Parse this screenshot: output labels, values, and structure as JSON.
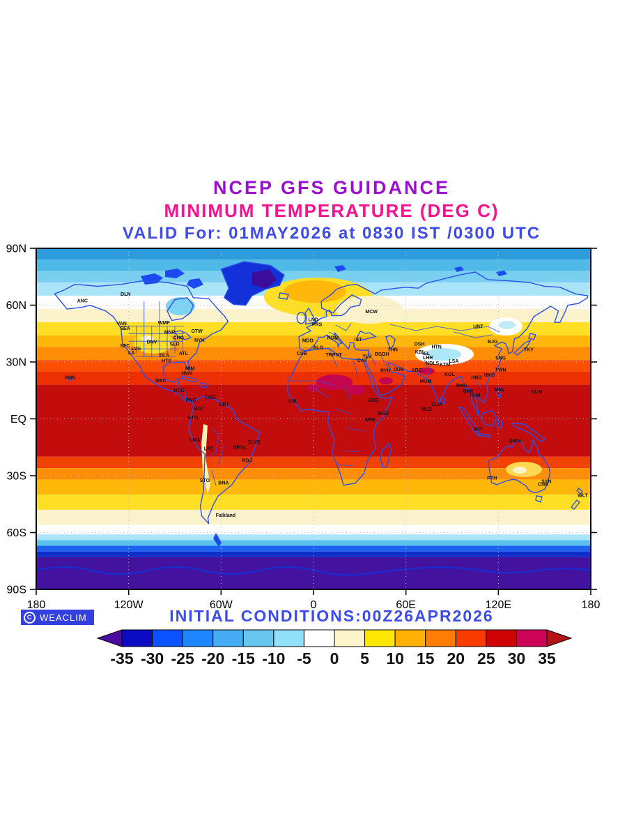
{
  "header": {
    "line1": "NCEP GFS GUIDANCE",
    "line2": "MINIMUM TEMPERATURE (DEG C)",
    "line3": "VALID For: 01MAY2026 at 0830 IST /0300 UTC"
  },
  "footer": {
    "initial_conditions": "INITIAL CONDITIONS:00Z26APR2026",
    "copyright_symbol": "C",
    "brand": "WEACLIM"
  },
  "colors": {
    "title1": "#9A10CE",
    "title2": "#FA1190",
    "title3": "#3D4BE8",
    "outline": "#2B50E8",
    "badge_bg": "#3340DF"
  },
  "chart_data": {
    "type": "heatmap",
    "title": "NCEP GFS GUIDANCE",
    "subtitle": "MINIMUM TEMPERATURE (DEG C)",
    "valid": "VALID For: 01MAY2026 at 0830 IST /0300 UTC",
    "initial": "INITIAL CONDITIONS:00Z26APR2026",
    "units": "DEG C",
    "projection": "equirectangular world map, lon -180..180, lat -90..90",
    "lat_ticks": [
      {
        "label": "90N",
        "lat": 90
      },
      {
        "label": "60N",
        "lat": 60
      },
      {
        "label": "30N",
        "lat": 30
      },
      {
        "label": "EQ",
        "lat": 0
      },
      {
        "label": "30S",
        "lat": -30
      },
      {
        "label": "60S",
        "lat": -60
      },
      {
        "label": "90S",
        "lat": -90
      }
    ],
    "lon_ticks": [
      {
        "label": "180",
        "lon": -180
      },
      {
        "label": "120W",
        "lon": -120
      },
      {
        "label": "60W",
        "lon": -60
      },
      {
        "label": "0",
        "lon": 0
      },
      {
        "label": "60E",
        "lon": 60
      },
      {
        "label": "120E",
        "lon": 120
      },
      {
        "label": "180",
        "lon": 180
      }
    ],
    "zonal_bands": [
      {
        "from": 90,
        "to": 84,
        "color": "#2D9BDC"
      },
      {
        "from": 84,
        "to": 78,
        "color": "#4FB9E8"
      },
      {
        "from": 78,
        "to": 72,
        "color": "#79CFF0"
      },
      {
        "from": 72,
        "to": 65,
        "color": "#A9E4F8"
      },
      {
        "from": 65,
        "to": 58,
        "color": "#FFFFFF"
      },
      {
        "from": 58,
        "to": 51,
        "color": "#FBF2CC"
      },
      {
        "from": 51,
        "to": 44,
        "color": "#FFDE26"
      },
      {
        "from": 44,
        "to": 38,
        "color": "#FFB70A"
      },
      {
        "from": 38,
        "to": 31,
        "color": "#FF8D06"
      },
      {
        "from": 31,
        "to": 25,
        "color": "#FB4F04"
      },
      {
        "from": 25,
        "to": 18,
        "color": "#EC3002"
      },
      {
        "from": 18,
        "to": -20,
        "color": "#C30C0C"
      },
      {
        "from": -20,
        "to": -26,
        "color": "#F04202"
      },
      {
        "from": -26,
        "to": -32,
        "color": "#FF8D06"
      },
      {
        "from": -32,
        "to": -40,
        "color": "#FFB70A"
      },
      {
        "from": -40,
        "to": -48,
        "color": "#FFDE26"
      },
      {
        "from": -48,
        "to": -56,
        "color": "#FBF2CC"
      },
      {
        "from": -56,
        "to": -61,
        "color": "#FFFFFF"
      },
      {
        "from": -61,
        "to": -64,
        "color": "#A9E4F8"
      },
      {
        "from": -64,
        "to": -67,
        "color": "#59C2EC"
      },
      {
        "from": -67,
        "to": -70,
        "color": "#1E62F0"
      },
      {
        "from": -70,
        "to": -73,
        "color": "#0B2FC8"
      },
      {
        "from": -73,
        "to": -90,
        "color": "#43129E"
      }
    ],
    "colorbar": {
      "levels": [
        -35,
        -30,
        -25,
        -20,
        -15,
        -10,
        -5,
        0,
        5,
        10,
        15,
        20,
        25,
        30,
        35
      ],
      "colors": [
        "#0B0BC4",
        "#0C52FF",
        "#1E86FF",
        "#45ABF2",
        "#68C6EE",
        "#8FE0F8",
        "#FFFFFF",
        "#FCF4CB",
        "#FFE705",
        "#FFB005",
        "#FF7D05",
        "#FB3C02",
        "#CE0404",
        "#CC0458"
      ],
      "arrow_left_color": "#4A0C9E",
      "arrow_right_color": "#B31217"
    },
    "city_labels": [
      {
        "name": "HON",
        "lon": -158,
        "lat": 21
      },
      {
        "name": "ANC",
        "lon": -150,
        "lat": 61.5
      },
      {
        "name": "DLN",
        "lon": -122,
        "lat": 65
      },
      {
        "name": "VAN",
        "lon": -124.5,
        "lat": 49.5
      },
      {
        "name": "SEA",
        "lon": -122.3,
        "lat": 47
      },
      {
        "name": "WMP",
        "lon": -97.1,
        "lat": 49.9
      },
      {
        "name": "MNP",
        "lon": -93.3,
        "lat": 45
      },
      {
        "name": "OTW",
        "lon": -75.7,
        "lat": 45.4
      },
      {
        "name": "NYK",
        "lon": -74,
        "lat": 40.7
      },
      {
        "name": "CHG",
        "lon": -87.6,
        "lat": 41.9
      },
      {
        "name": "SLD",
        "lon": -90.2,
        "lat": 38.6
      },
      {
        "name": "DNV",
        "lon": -104.9,
        "lat": 39.7
      },
      {
        "name": "SFC",
        "lon": -122.4,
        "lat": 37.8
      },
      {
        "name": "LVG",
        "lon": -115.1,
        "lat": 36.2
      },
      {
        "name": "LA",
        "lon": -118.2,
        "lat": 34.1
      },
      {
        "name": "DLS",
        "lon": -96.8,
        "lat": 32.8
      },
      {
        "name": "ATL",
        "lon": -84.4,
        "lat": 33.7
      },
      {
        "name": "HTS",
        "lon": -95.4,
        "lat": 29.8
      },
      {
        "name": "MIM",
        "lon": -80.2,
        "lat": 25.8
      },
      {
        "name": "HVH",
        "lon": -82.4,
        "lat": 23.1
      },
      {
        "name": "MXC",
        "lon": -99.1,
        "lat": 19.4
      },
      {
        "name": "HCO",
        "lon": -87.2,
        "lat": 14.1
      },
      {
        "name": "PNC",
        "lon": -79.5,
        "lat": 9
      },
      {
        "name": "CRG",
        "lon": -66.9,
        "lat": 10.5
      },
      {
        "name": "BGT",
        "lon": -74.1,
        "lat": 4.6
      },
      {
        "name": "GRT",
        "lon": -58.2,
        "lat": 6.8
      },
      {
        "name": "GTO",
        "lon": -78.5,
        "lat": -0.2
      },
      {
        "name": "LMA",
        "lon": -77,
        "lat": -12
      },
      {
        "name": "LPZ",
        "lon": -68.1,
        "lat": -16.5
      },
      {
        "name": "BRSL",
        "lon": -47.9,
        "lat": -15.8
      },
      {
        "name": "SLVD",
        "lon": -38.5,
        "lat": -13
      },
      {
        "name": "RDJ",
        "lon": -43.2,
        "lat": -22.9
      },
      {
        "name": "STO",
        "lon": -70.6,
        "lat": -33.4
      },
      {
        "name": "BNA",
        "lon": -58.4,
        "lat": -34.6
      },
      {
        "name": "Falkland",
        "lon": -57,
        "lat": -51.7
      },
      {
        "name": "LND",
        "lon": -0.1,
        "lat": 51.5
      },
      {
        "name": "PRS",
        "lon": 2.3,
        "lat": 48.9
      },
      {
        "name": "MDD",
        "lon": -3.7,
        "lat": 40.4
      },
      {
        "name": "ROM",
        "lon": 12.5,
        "lat": 41.9
      },
      {
        "name": "IST",
        "lon": 29,
        "lat": 41
      },
      {
        "name": "MCW",
        "lon": 37.6,
        "lat": 55.8
      },
      {
        "name": "ALG",
        "lon": 3,
        "lat": 36.8
      },
      {
        "name": "CSB",
        "lon": -7.6,
        "lat": 33.6
      },
      {
        "name": "TRPNT",
        "lon": 13.2,
        "lat": 32.9
      },
      {
        "name": "CAI",
        "lon": 31.2,
        "lat": 30
      },
      {
        "name": "TLV",
        "lon": 34.8,
        "lat": 32.1
      },
      {
        "name": "ADB",
        "lon": 38.7,
        "lat": 9
      },
      {
        "name": "NRB",
        "lon": 36.8,
        "lat": -1.3
      },
      {
        "name": "MGD",
        "lon": 45.3,
        "lat": 2
      },
      {
        "name": "SRL",
        "lon": -13.2,
        "lat": 8.5
      },
      {
        "name": "THN",
        "lon": 51.4,
        "lat": 35.7
      },
      {
        "name": "BGDH",
        "lon": 44.4,
        "lat": 33.3
      },
      {
        "name": "RYH",
        "lon": 46.7,
        "lat": 24.6
      },
      {
        "name": "DUB",
        "lon": 55.3,
        "lat": 25.3
      },
      {
        "name": "KBL",
        "lon": 69.2,
        "lat": 34.5
      },
      {
        "name": "ISL",
        "lon": 73.1,
        "lat": 33.7
      },
      {
        "name": "LHR",
        "lon": 74.3,
        "lat": 31.5
      },
      {
        "name": "NDLS",
        "lon": 77.2,
        "lat": 28.6
      },
      {
        "name": "KTM",
        "lon": 85.3,
        "lat": 27.7
      },
      {
        "name": "LSA",
        "lon": 91.1,
        "lat": 29.7
      },
      {
        "name": "DSH",
        "lon": 68.8,
        "lat": 38.6
      },
      {
        "name": "HTN",
        "lon": 79.9,
        "lat": 37.1
      },
      {
        "name": "KRC",
        "lon": 67,
        "lat": 24.9
      },
      {
        "name": "MUM",
        "lon": 72.8,
        "lat": 19
      },
      {
        "name": "KOL",
        "lon": 88.4,
        "lat": 22.6
      },
      {
        "name": "CLM",
        "lon": 79.9,
        "lat": 6.9
      },
      {
        "name": "MLD",
        "lon": 73.5,
        "lat": 4.2
      },
      {
        "name": "RNG",
        "lon": 96.2,
        "lat": 16.8
      },
      {
        "name": "BNK",
        "lon": 100.5,
        "lat": 13.8
      },
      {
        "name": "PHN",
        "lon": 104.9,
        "lat": 11.6
      },
      {
        "name": "HND",
        "lon": 105.8,
        "lat": 21
      },
      {
        "name": "HKG",
        "lon": 114.2,
        "lat": 22.3
      },
      {
        "name": "TWN",
        "lon": 121.5,
        "lat": 25
      },
      {
        "name": "SHG",
        "lon": 121.5,
        "lat": 31.2
      },
      {
        "name": "BJG",
        "lon": 116.4,
        "lat": 39.9
      },
      {
        "name": "UBT",
        "lon": 106.9,
        "lat": 47.9
      },
      {
        "name": "TKY",
        "lon": 139.7,
        "lat": 35.7
      },
      {
        "name": "MNL",
        "lon": 121,
        "lat": 14.6
      },
      {
        "name": "GUM",
        "lon": 144.8,
        "lat": 13.5
      },
      {
        "name": "JKT",
        "lon": 106.8,
        "lat": -6.2
      },
      {
        "name": "DWN",
        "lon": 130.8,
        "lat": -12.5
      },
      {
        "name": "PTH",
        "lon": 115.9,
        "lat": -32
      },
      {
        "name": "SYN",
        "lon": 151.2,
        "lat": -33.9
      },
      {
        "name": "CNB",
        "lon": 149.1,
        "lat": -35.3
      },
      {
        "name": "WLT",
        "lon": 174.8,
        "lat": -41.3
      }
    ]
  }
}
